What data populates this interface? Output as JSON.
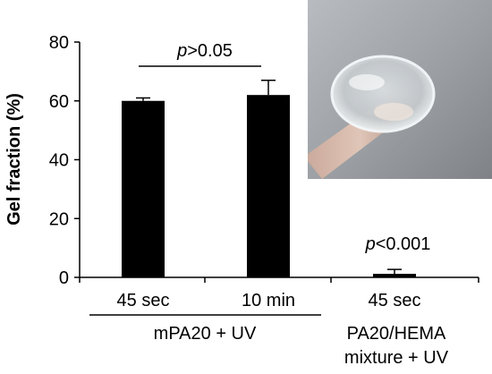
{
  "chart_data": {
    "type": "bar",
    "ylabel": "Gel fraction (%)",
    "ylim": [
      0,
      80
    ],
    "yticks": [
      0,
      20,
      40,
      60,
      80
    ],
    "categories": [
      "45 sec",
      "10 min",
      "45 sec"
    ],
    "values": [
      60,
      62,
      1.2
    ],
    "errors": [
      1.0,
      5.0,
      1.5
    ],
    "bar_color": "#000000",
    "groups": [
      {
        "label": "mPA20 + UV",
        "categories": [
          0,
          1
        ]
      },
      {
        "label_lines": [
          "PA20/HEMA",
          "mixture + UV"
        ],
        "categories": [
          2
        ]
      }
    ],
    "annotations": [
      {
        "p": "p",
        "rest": ">0.05",
        "between": [
          0,
          1
        ]
      },
      {
        "p": "p",
        "rest": "<0.001",
        "above": 2
      }
    ],
    "inset": {
      "description": "photo of a hydrogel contact lens"
    }
  }
}
